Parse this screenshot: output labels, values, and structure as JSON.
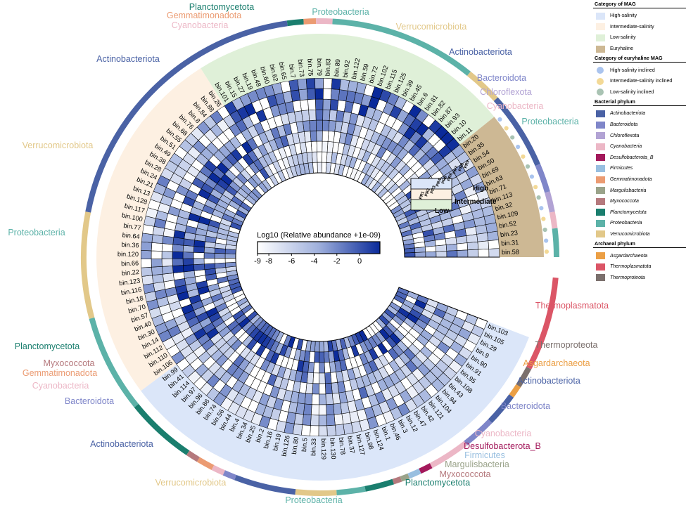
{
  "legend": {
    "category_title": "Category of MAG",
    "categories": [
      {
        "label": "High-salinity",
        "color": "#dbe6f9"
      },
      {
        "label": "Intermediate-salinity",
        "color": "#fdf0e2"
      },
      {
        "label": "Low-salinity",
        "color": "#dff0d8"
      },
      {
        "label": "Euryhaline",
        "color": "#cdb894"
      }
    ],
    "euryhaline_title": "Category of euryhaline MAG",
    "euryhaline": [
      {
        "label": "High-salinity inclined",
        "color": "#aac4ee"
      },
      {
        "label": "Intermediate-salinity inclined",
        "color": "#f3d996"
      },
      {
        "label": "Low-salinity inclined",
        "color": "#a9c3b3"
      }
    ],
    "bacterial_title": "Bacterial phylum",
    "bacterial": [
      {
        "label": "Actinobacteriota",
        "color": "#4a62a5"
      },
      {
        "label": "Bacteroidota",
        "color": "#7f86c9"
      },
      {
        "label": "Chloroflexota",
        "color": "#b2a3d4"
      },
      {
        "label": "Cyanobacteria",
        "color": "#ecb7c6"
      },
      {
        "label": "Desulfobacterota_B",
        "color": "#a3195b"
      },
      {
        "label": "Firmicutes",
        "color": "#98bfe0"
      },
      {
        "label": "Gemmatimonadota",
        "color": "#eb9b72"
      },
      {
        "label": "Margulisbacteria",
        "color": "#9aa38a"
      },
      {
        "label": "Myxococcota",
        "color": "#b5797d"
      },
      {
        "label": "Planctomycetota",
        "color": "#1a7e6e"
      },
      {
        "label": "Proteobacteria",
        "color": "#5cb2a8"
      },
      {
        "label": "Verrucomicrobiota",
        "color": "#e2c889"
      }
    ],
    "archaeal_title": "Archaeal phylum",
    "archaeal": [
      {
        "label": "Asgardarchaeota",
        "color": "#eb9f45"
      },
      {
        "label": "Thermoplasmatota",
        "color": "#db5566"
      },
      {
        "label": "Thermoproteota",
        "color": "#7b706d"
      }
    ]
  },
  "chart_data": {
    "type": "heatmap",
    "layout": "circular",
    "colorbar": {
      "title": "Log10 (Relative abundance +1e-09)",
      "ticks": [
        "-9",
        "-8",
        "-6",
        "-4",
        "-2",
        "0"
      ],
      "tick_values": [
        -9,
        -8,
        -6,
        -4,
        -2,
        0
      ],
      "range": [
        -9,
        1.8
      ],
      "colors": [
        "#ffffff",
        "#9fb0dc",
        "#0a2a9a"
      ]
    },
    "group_labels": [
      "High",
      "Intermediate",
      "Low"
    ],
    "sample_labels": [
      "PR9",
      "PR8",
      "PR7",
      "PR6",
      "PR5",
      "PR4",
      "PR3",
      "PR2",
      "PR1"
    ],
    "ring_count": 9,
    "groups": [
      {
        "category": "High-salinity",
        "mags": [
          "bin.103",
          "bin.105",
          "bin.29",
          "bin.9",
          "bin.90",
          "bin.91",
          "bin.95",
          "bin.108",
          "bin.43",
          "bin.94",
          "bin.104",
          "bin.121",
          "bin.42",
          "bin.47",
          "bin.12",
          "bin.3",
          "bin.46",
          "bin.1",
          "bin.124",
          "bin.98",
          "bin.127",
          "bin.37",
          "bin.78",
          "bin.130",
          "bin.129",
          "bin.33",
          "bin.5",
          "bin.80",
          "bin.126",
          "bin.19",
          "bin.16",
          "bin.2",
          "bin.25",
          "bin.34",
          "bin.4",
          "bin.44",
          "bin.56",
          "bin.74",
          "bin.86",
          "bin.96",
          "bin.97",
          "bin.114",
          "bin.41",
          "bin.99"
        ]
      },
      {
        "category": "Intermediate-salinity",
        "mags": [
          "bin.106",
          "bin.110",
          "bin.112",
          "bin.14",
          "bin.30",
          "bin.40",
          "bin.57",
          "bin.70",
          "bin.18",
          "bin.116",
          "bin.123",
          "bin.22",
          "bin.66",
          "bin.120",
          "bin.36",
          "bin.64",
          "bin.77",
          "bin.100",
          "bin.117",
          "bin.128",
          "bin.13",
          "bin.21",
          "bin.24",
          "bin.28",
          "bin.38",
          "bin.49",
          "bin.51",
          "bin.55",
          "bin.68",
          "bin.76",
          "bin.8",
          "bin.84",
          "bin.88",
          "bin.26"
        ]
      },
      {
        "category": "Low-salinity",
        "mags": [
          "bin.101",
          "bin.15",
          "bin.27",
          "bin.19",
          "bin.48",
          "bin.60",
          "bin.62",
          "bin.65",
          "bin.7",
          "bin.73",
          "bin.75",
          "bin.79",
          "bin.83",
          "bin.89",
          "bin.92",
          "bin.122",
          "bin.59",
          "bin.72",
          "bin.102",
          "bin.115",
          "bin.125",
          "bin.39",
          "bin.45",
          "bin.6",
          "bin.81",
          "bin.82",
          "bin.87",
          "bin.93",
          "bin.10",
          "bin.11"
        ]
      },
      {
        "category": "Euryhaline",
        "mags": [
          "bin.20",
          "bin.35",
          "bin.54",
          "bin.50",
          "bin.69",
          "bin.63",
          "bin.71",
          "bin.113",
          "bin.32",
          "bin.109",
          "bin.52",
          "bin.23",
          "bin.31",
          "bin.58"
        ]
      }
    ],
    "phylum_labels": [
      "Planctomycetota",
      "Gemmatimonadota",
      "Cyanobacteria",
      "Proteobacteria",
      "Verrucomicrobiota",
      "Actinobacteriota",
      "Bacteroidota",
      "Chloroflexota",
      "Cyanobacteria",
      "Proteobacteria",
      "Actinobacteriota",
      "Verrucomicrobiota",
      "Proteobacteria",
      "Planctomycetota",
      "Myxococcota",
      "Gemmatimonadota",
      "Cyanobacteria",
      "Bacteroidota",
      "Actinobacteriota",
      "Verrucomicrobiota",
      "Proteobacteria",
      "Planctomycetota",
      "Myxococcota",
      "Margulisbacteria",
      "Firmicutes",
      "Desulfobacterota_B",
      "Cyanobacteria",
      "Bacteroidota",
      "Actinobacteriota",
      "Asgardarchaeota",
      "Thermoproteota",
      "Thermoplasmatota"
    ]
  }
}
